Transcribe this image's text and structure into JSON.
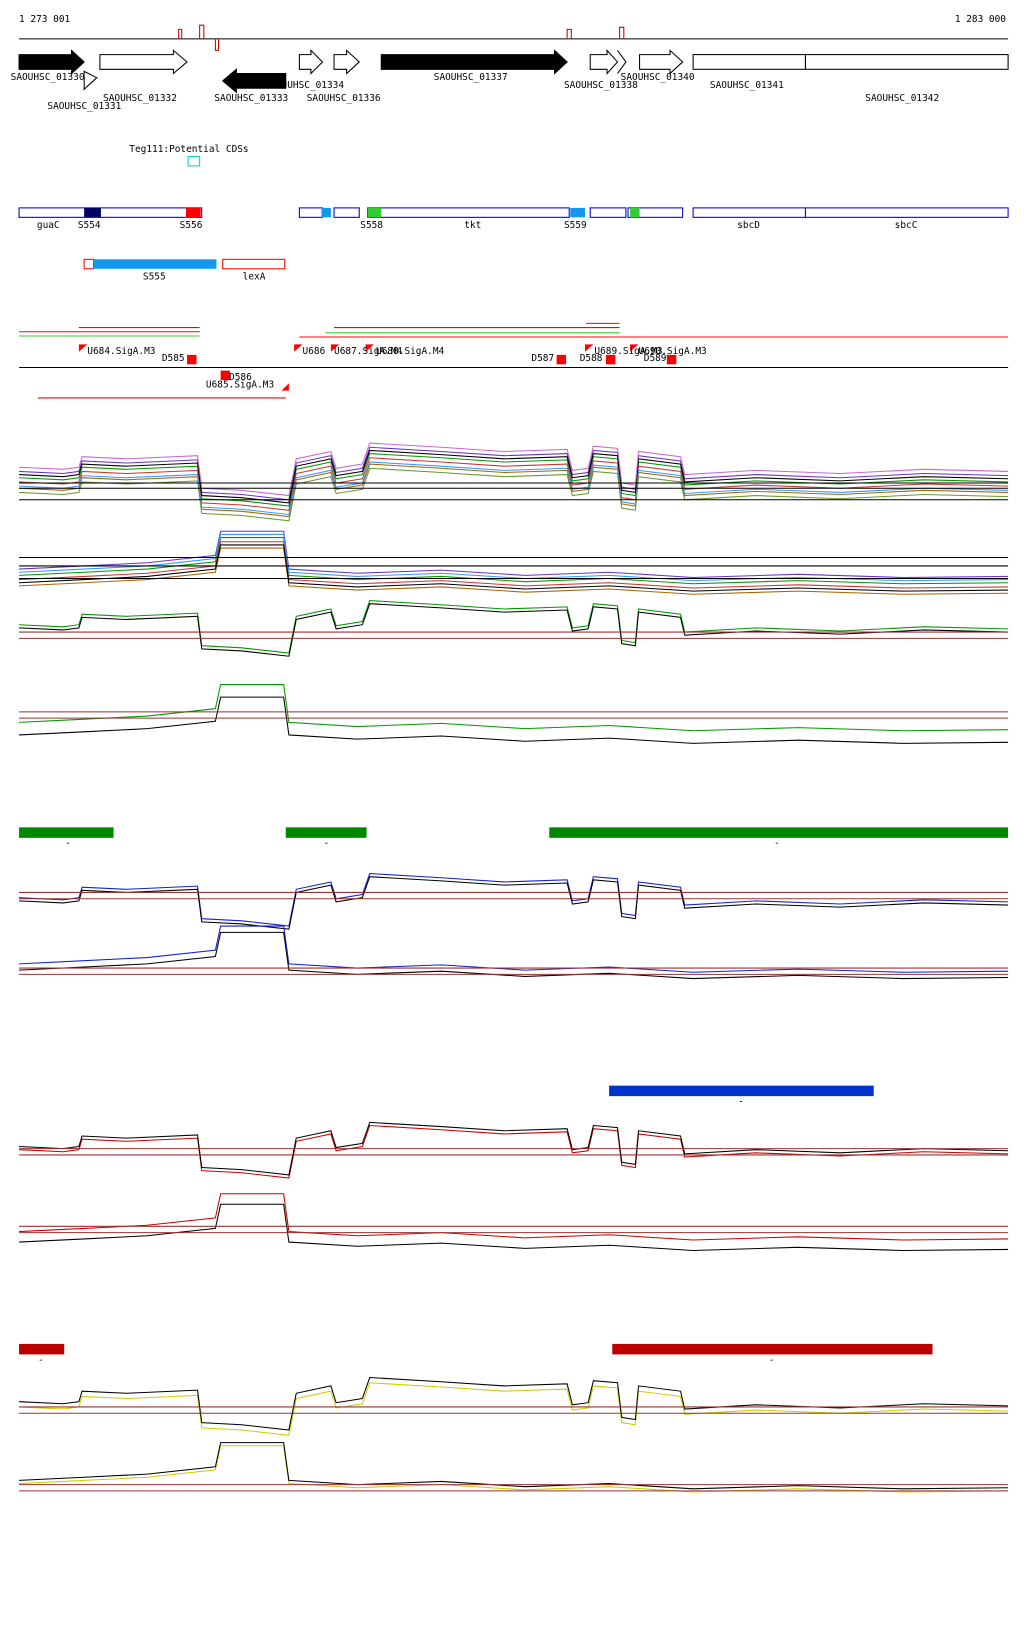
{
  "coordinates": {
    "start": "1 273 001",
    "end": "1 283 000"
  },
  "genes": [
    "SAOUHSC_01330",
    "SAOUHSC_01331",
    "SAOUHSC_01332",
    "SAOUHSC_01333",
    "OUHSC_01334",
    "SAOUHSC_01336",
    "SAOUHSC_01337",
    "SAOUHSC_01338",
    "SAOUHSC_01340",
    "SAOUHSC_01341",
    "SAOUHSC_01342"
  ],
  "potential_cds": "Teg111:Potential CDSs",
  "segments": [
    "guaC",
    "S554",
    "S556",
    "S558",
    "tkt",
    "S559",
    "sbcD",
    "sbcC",
    "S555",
    "lexA"
  ],
  "promoters": [
    "U684.SigA.M3",
    "D585",
    "D586",
    "U685.SigA.M3",
    "U686",
    "U687.SigA.M4",
    "U688.SigA.M4",
    "D587",
    "D588",
    "U689.SigA.M3",
    "U690.SigA.M3",
    "D589"
  ],
  "bar_labels": {
    "green": [
      "-",
      "-",
      "-"
    ],
    "blue": [
      "-"
    ],
    "red": [
      "-",
      "-"
    ]
  }
}
